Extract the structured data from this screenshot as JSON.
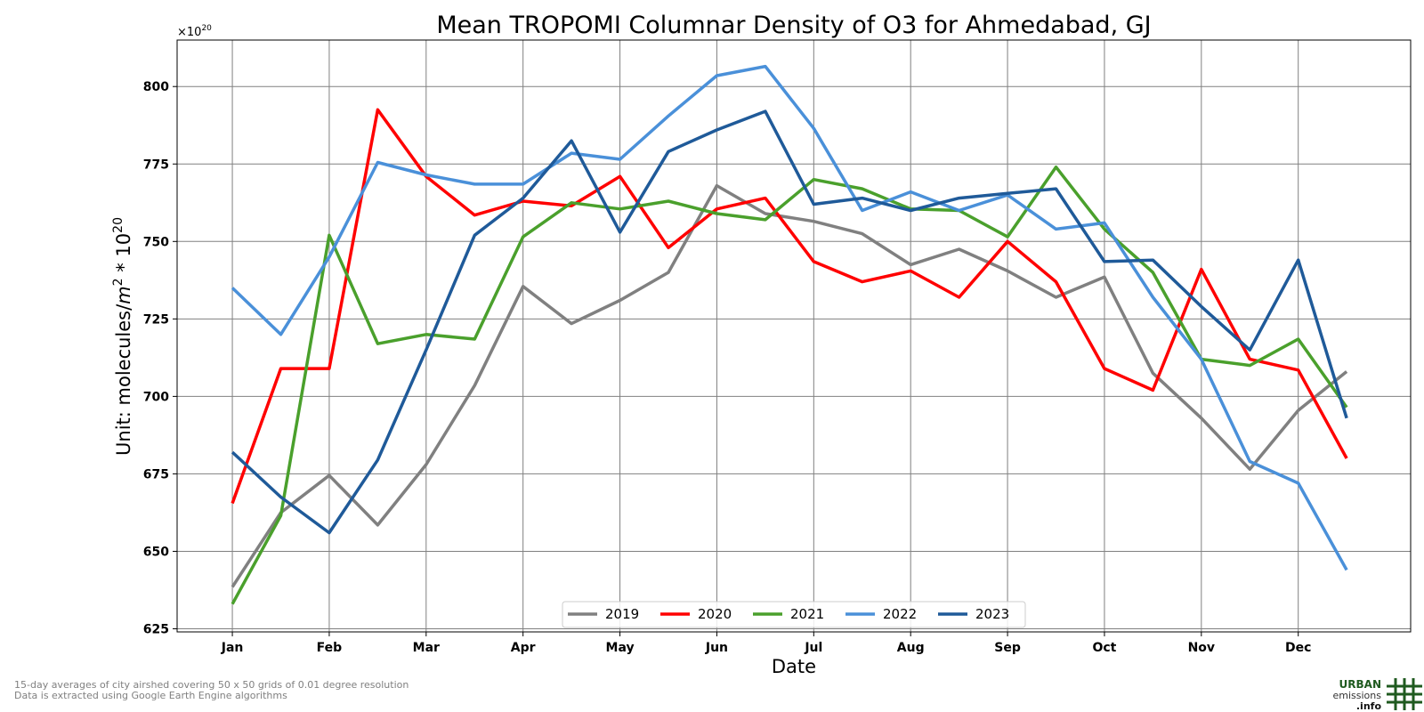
{
  "chart_data": {
    "type": "line",
    "title": "Mean TROPOMI Columnar Density of O3 for Ahmedabad, GJ",
    "xlabel": "Date",
    "ylabel_prefix": "Unit: molecules/",
    "ylabel_m": "m",
    "ylabel_m_exp": "2",
    "ylabel_mid": " * 10",
    "ylabel_exp": "20",
    "offset_base": "×10",
    "offset_exp": "20",
    "x_ticks": [
      "Jan",
      "Feb",
      "Mar",
      "Apr",
      "May",
      "Jun",
      "Jul",
      "Aug",
      "Sep",
      "Oct",
      "Nov",
      "Dec"
    ],
    "y_ticks": [
      "625",
      "650",
      "675",
      "700",
      "725",
      "750",
      "775",
      "800"
    ],
    "y_tick_values": [
      625,
      650,
      675,
      700,
      725,
      750,
      775,
      800
    ],
    "ylim": [
      624,
      815
    ],
    "xlim": [
      -0.57,
      12.16
    ],
    "grid": true,
    "legend_position": "lower center",
    "x": [
      0,
      0.5,
      1,
      1.5,
      2,
      2.5,
      3,
      3.5,
      4,
      4.5,
      5,
      5.5,
      6,
      6.5,
      7,
      7.5,
      8,
      8.5,
      9,
      9.5,
      10,
      10.5,
      11,
      11.5
    ],
    "series": [
      {
        "name": "2019",
        "color": "#808080",
        "values": [
          638.5,
          662.5,
          674.5,
          658.5,
          678,
          703.5,
          735.5,
          723.5,
          731,
          740,
          768,
          759,
          756.5,
          752.5,
          742.5,
          747.5,
          740.5,
          732,
          738.5,
          707.5,
          693,
          676.5,
          695.5,
          708
        ]
      },
      {
        "name": "2020",
        "color": "#ff0000",
        "values": [
          665.5,
          709,
          709,
          792.5,
          771,
          758.5,
          763,
          761.5,
          771,
          748,
          760.5,
          764,
          743.5,
          737,
          740.5,
          732,
          750,
          737,
          709,
          702,
          741,
          712,
          708.5,
          680
        ]
      },
      {
        "name": "2021",
        "color": "#4aa02c",
        "values": [
          633,
          661.5,
          752,
          717,
          720,
          718.5,
          751.5,
          762.5,
          760.5,
          763,
          759,
          757,
          770,
          767,
          760.5,
          760,
          751.5,
          774,
          754,
          740,
          712,
          710,
          718.5,
          696.5
        ]
      },
      {
        "name": "2022",
        "color": "#4a90d9",
        "values": [
          735,
          720,
          745,
          775.5,
          771.5,
          768.5,
          768.5,
          778.5,
          776.5,
          790.5,
          803.5,
          806.5,
          786.5,
          760,
          766,
          760,
          765,
          754,
          756,
          732,
          712,
          679,
          672,
          644
        ]
      },
      {
        "name": "2023",
        "color": "#1f5a99",
        "values": [
          682,
          667.5,
          656,
          679.5,
          715,
          752,
          764,
          782.5,
          753,
          779,
          786,
          792,
          762,
          764,
          760,
          764,
          765.5,
          767,
          743.5,
          744,
          729,
          715,
          744,
          693
        ]
      }
    ]
  },
  "footnotes": {
    "line1": "15-day averages of city airshed covering 50 x 50 grids of 0.01 degree resolution",
    "line2": "Data is extracted using Google Earth Engine algorithms"
  },
  "logo": {
    "line1": "URBAN",
    "line2": "emissions",
    "line3": ".info"
  }
}
